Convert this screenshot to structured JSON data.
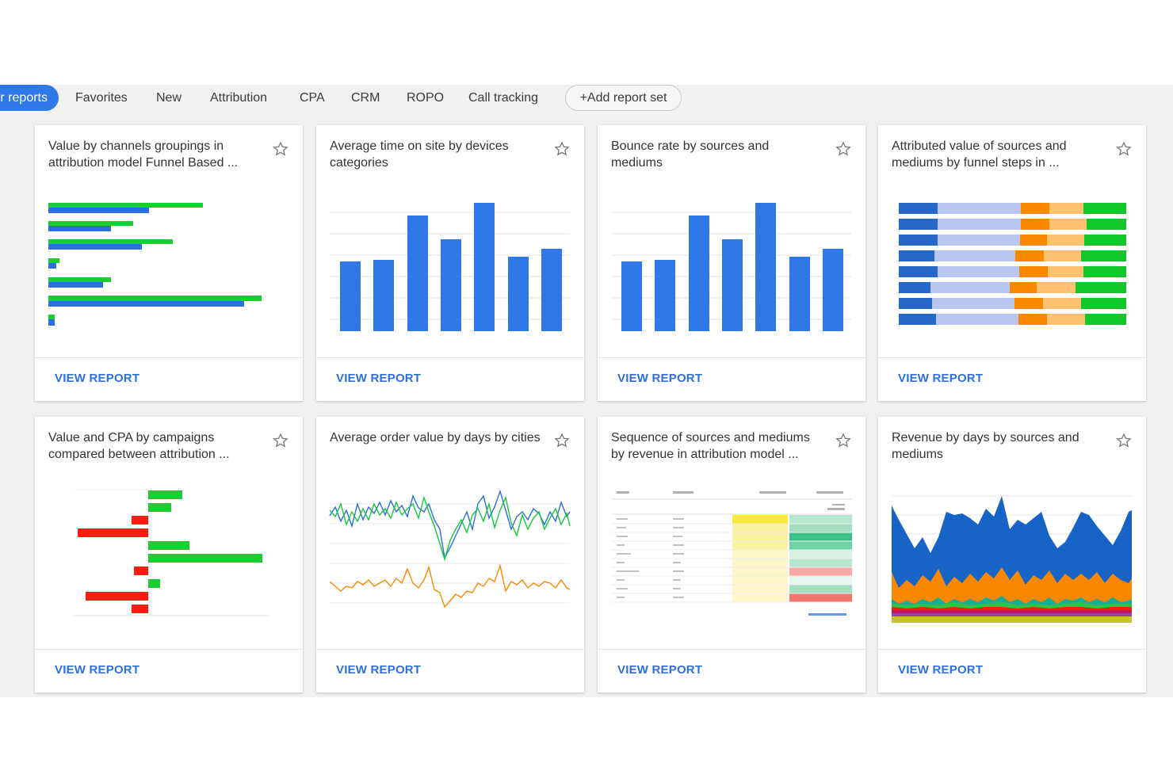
{
  "tabs": {
    "active": "r reports",
    "items": [
      "Favorites",
      "New",
      "Attribution",
      "CPA",
      "CRM",
      "ROPO",
      "Call tracking"
    ],
    "add_label": "Add report set"
  },
  "colors": {
    "accent": "#2f78e7",
    "link": "#2f6fd8",
    "green": "#17cf31",
    "red": "#f81c11",
    "orange": "#f98800",
    "teal": "#19ad95"
  },
  "view_report_label": "VIEW REPORT",
  "cards": [
    {
      "title": "Value by channels groupings in attribution model Funnel Based ..."
    },
    {
      "title": "Average time on site by devices categories"
    },
    {
      "title": "Bounce rate by sources and mediums"
    },
    {
      "title": "Attributed value of sources and mediums by funnel steps in ..."
    },
    {
      "title": "Value and CPA by campaigns compared between attribution ..."
    },
    {
      "title": "Average order value by days by cities"
    },
    {
      "title": "Sequence of sources and mediums by revenue in attribution model ..."
    },
    {
      "title": "Revenue by days by sources and mediums"
    }
  ]
}
